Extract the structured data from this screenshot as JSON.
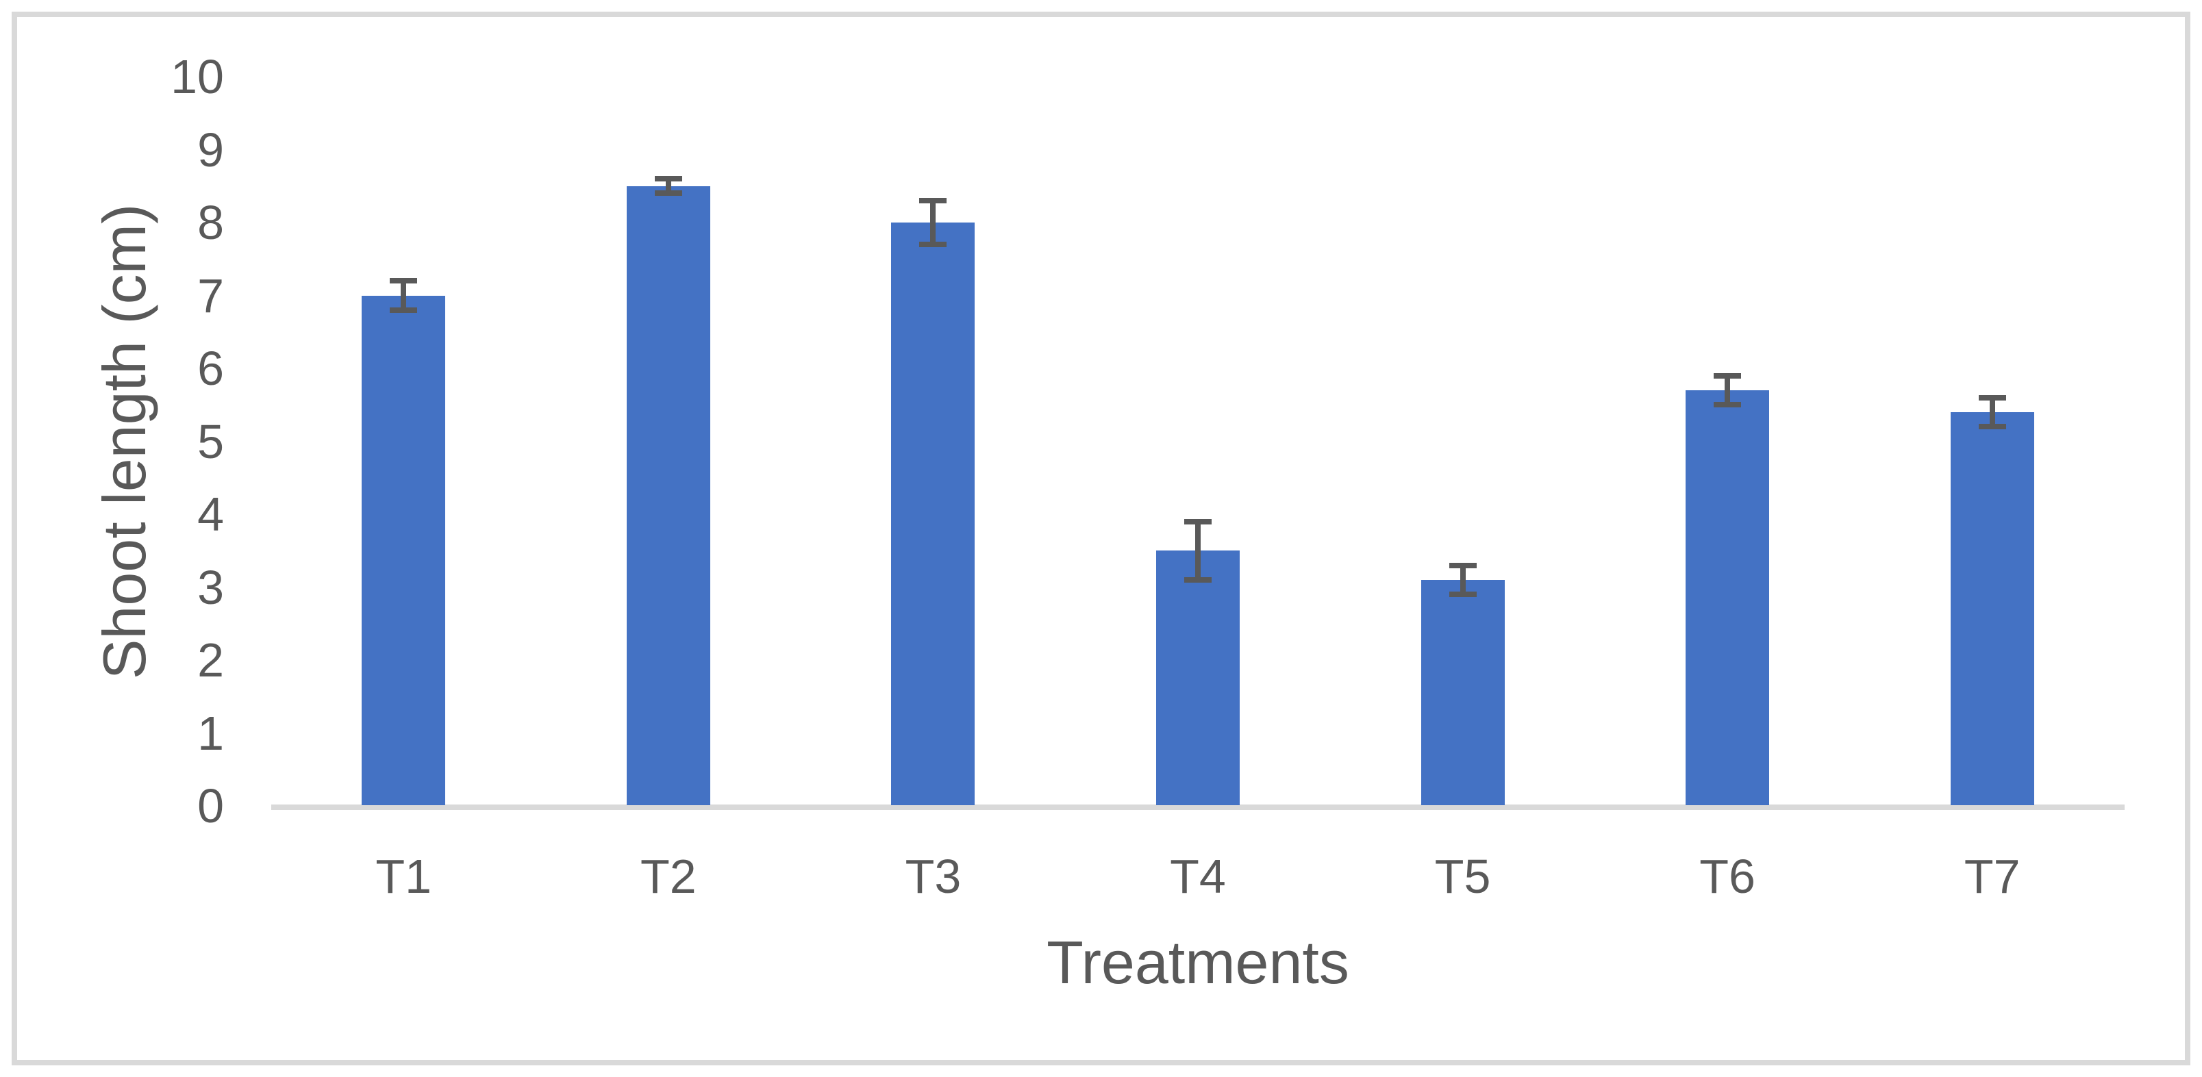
{
  "figure": {
    "background_color": "#FFFFFF",
    "frame_border_color": "#D9D9D9"
  },
  "chart_data": {
    "type": "bar",
    "title": "",
    "xlabel": "Treatments",
    "ylabel": "Shoot length (cm)",
    "categories": [
      "T1",
      "T2",
      "T3",
      "T4",
      "T5",
      "T6",
      "T7"
    ],
    "series": [
      {
        "name": "Shoot length (cm)",
        "values": [
          7.0,
          8.5,
          8.0,
          3.5,
          3.1,
          5.7,
          5.4
        ],
        "error_bars": [
          0.2,
          0.1,
          0.3,
          0.4,
          0.2,
          0.2,
          0.2
        ]
      }
    ],
    "ylim": [
      0,
      10
    ],
    "ytick_step": 1,
    "ytick_labels": [
      "0",
      "1",
      "2",
      "3",
      "4",
      "5",
      "6",
      "7",
      "8",
      "9",
      "10"
    ],
    "grid": "off",
    "legend": "none",
    "bar_color": "#4472C4",
    "error_bar_color": "#595959",
    "axis_line_color": "#D9D9D9",
    "text_color": "#595959"
  }
}
